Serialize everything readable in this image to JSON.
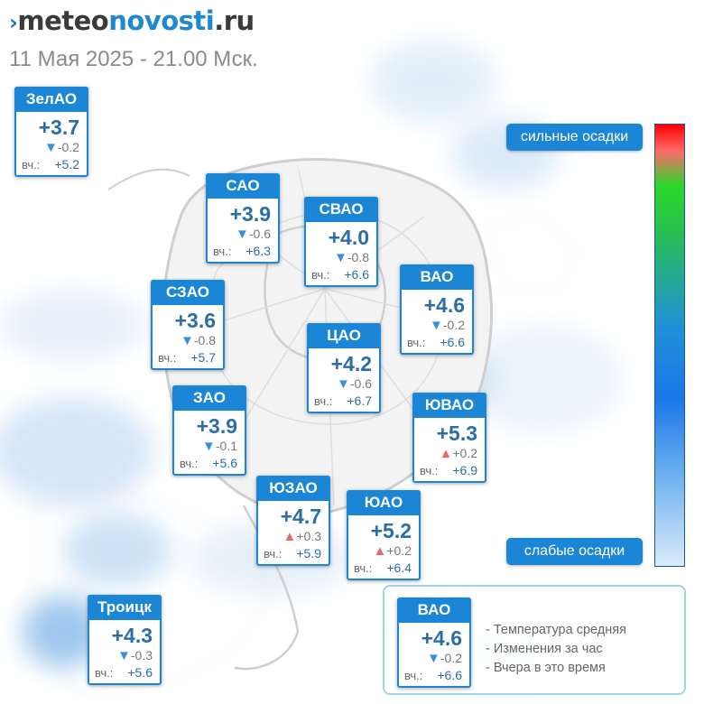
{
  "brand": {
    "mark": "›",
    "part1": "meteo",
    "part2": "novosti",
    "part3": ".ru"
  },
  "date": "11 Мая 2025 - 21.00 Мск.",
  "yesterday_label": "вч.:",
  "districts": [
    {
      "name": "ЗелАО",
      "temp": "+3.7",
      "trend": "down",
      "change": "-0.2",
      "yesterday": "+5.2"
    },
    {
      "name": "САО",
      "temp": "+3.9",
      "trend": "down",
      "change": "-0.6",
      "yesterday": "+6.3"
    },
    {
      "name": "СВАО",
      "temp": "+4.0",
      "trend": "down",
      "change": "-0.8",
      "yesterday": "+6.6"
    },
    {
      "name": "ВАО",
      "temp": "+4.6",
      "trend": "down",
      "change": "-0.2",
      "yesterday": "+6.6"
    },
    {
      "name": "СЗАО",
      "temp": "+3.6",
      "trend": "down",
      "change": "-0.8",
      "yesterday": "+5.7"
    },
    {
      "name": "ЦАО",
      "temp": "+4.2",
      "trend": "down",
      "change": "-0.6",
      "yesterday": "+6.7"
    },
    {
      "name": "ЗАО",
      "temp": "+3.9",
      "trend": "down",
      "change": "-0.1",
      "yesterday": "+5.6"
    },
    {
      "name": "ЮВАО",
      "temp": "+5.3",
      "trend": "up",
      "change": "+0.2",
      "yesterday": "+6.9"
    },
    {
      "name": "ЮЗАО",
      "temp": "+4.7",
      "trend": "up",
      "change": "+0.3",
      "yesterday": "+5.9"
    },
    {
      "name": "ЮАО",
      "temp": "+5.2",
      "trend": "up",
      "change": "+0.2",
      "yesterday": "+6.4"
    },
    {
      "name": "Троицк",
      "temp": "+4.3",
      "trend": "down",
      "change": "-0.3",
      "yesterday": "+5.6"
    }
  ],
  "precip_legend": {
    "high": "сильные осадки",
    "low": "слабые осадки"
  },
  "explanation": {
    "sample": {
      "name": "ВАО",
      "temp": "+4.6",
      "trend": "down",
      "change": "-0.2",
      "yesterday": "+6.6"
    },
    "lines": [
      "- Температура средняя",
      "- Изменения за час",
      "- Вчера в это время"
    ]
  },
  "colors": {
    "accent": "#1c86d6",
    "arrow_down": "#3b8fe0",
    "arrow_up": "#e86a6a"
  },
  "icons": {
    "down": "▼",
    "up": "▲"
  }
}
